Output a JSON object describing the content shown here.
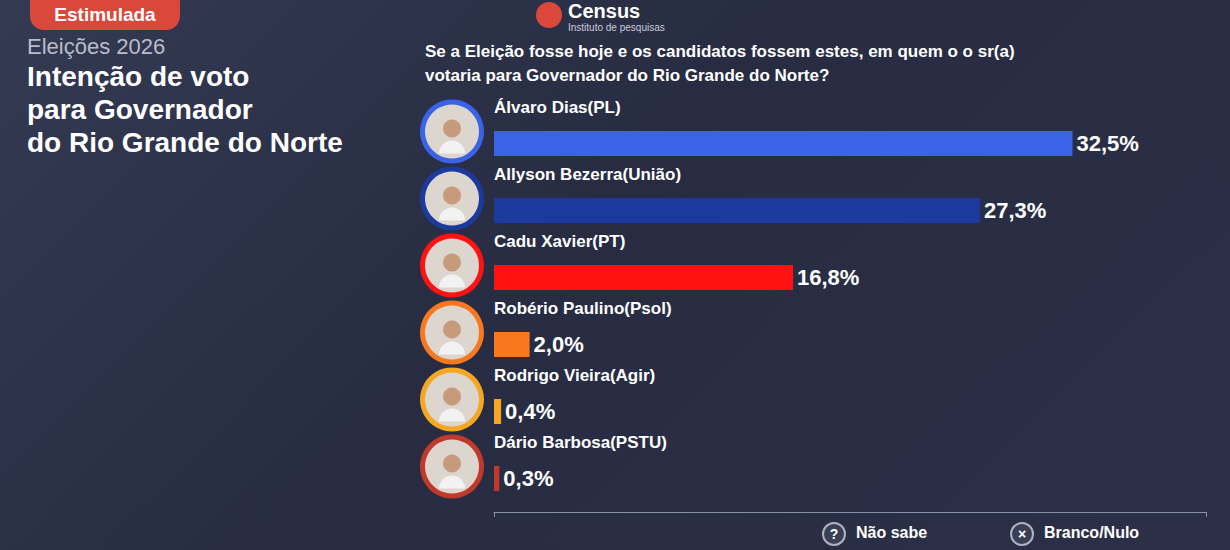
{
  "header": {
    "badge": "Estimulada",
    "subtitle": "Eleições 2026",
    "title": "Intenção de voto\npara Governador\ndo Rio Grande do Norte",
    "question": "Se a Eleição fosse hoje e os candidatos fossem estes, em quem o o sr(a)\nvotaria para  Governador do Rio Grande do Norte?",
    "logo": {
      "name": "Census",
      "tagline": "Instituto de pesquisas"
    }
  },
  "chart_data": {
    "type": "bar",
    "orientation": "horizontal",
    "categories": [
      "Álvaro Dias(PL)",
      "Allyson Bezerra(União)",
      "Cadu Xavier(PT)",
      "Robério Paulino(Psol)",
      "Rodrigo Vieira(Agir)",
      "Dário Barbosa(PSTU)"
    ],
    "values": [
      32.5,
      27.3,
      16.8,
      2.0,
      0.4,
      0.3
    ],
    "value_labels": [
      "32,5%",
      "27,3%",
      "16,8%",
      "2,0%",
      "0,4%",
      "0,3%"
    ],
    "colors": [
      "#3a63e8",
      "#1c3a9e",
      "#ff1212",
      "#f7781e",
      "#f5a623",
      "#c0392b"
    ],
    "xlim": [
      0,
      40
    ],
    "xticks": [
      0,
      40
    ],
    "tick_labels": false,
    "grid": false,
    "data_labels": true
  },
  "footer": [
    {
      "icon": "?",
      "label": "Não sabe"
    },
    {
      "icon": "×",
      "label": "Branco/Nulo"
    }
  ]
}
